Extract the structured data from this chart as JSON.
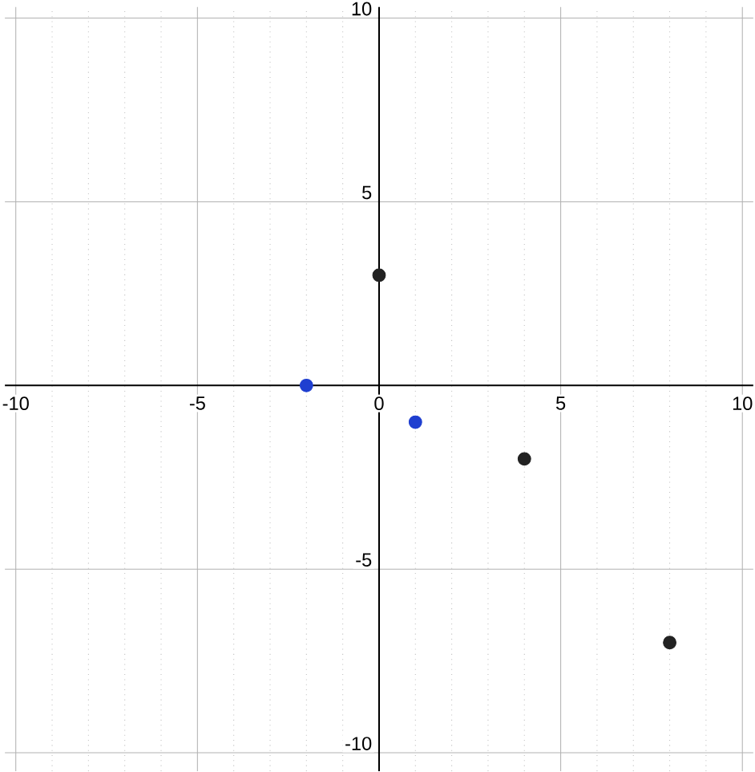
{
  "chart_data": {
    "type": "scatter",
    "xlim": [
      -10.3,
      10.3
    ],
    "ylim": [
      -10.5,
      10.3
    ],
    "xticks": [
      -10,
      -5,
      0,
      5,
      10
    ],
    "yticks": [
      -10,
      -5,
      5,
      10
    ],
    "grid": true,
    "marker": "circle",
    "series": [
      {
        "color": "#1f3fd0",
        "x": [
          -2,
          1
        ],
        "values": [
          0,
          -1
        ]
      },
      {
        "color": "#222222",
        "x": [
          0,
          4,
          8
        ],
        "values": [
          3,
          -2,
          -7
        ]
      }
    ]
  }
}
